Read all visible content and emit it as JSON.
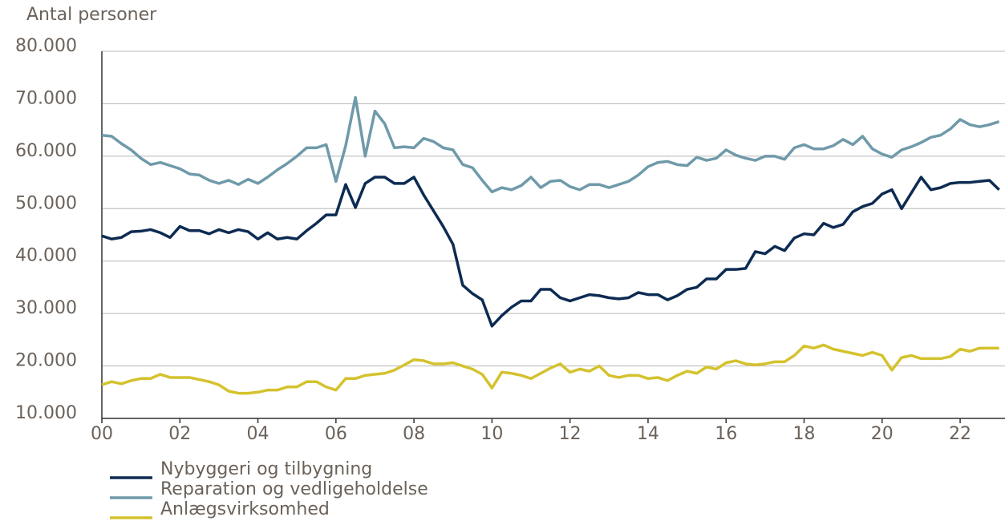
{
  "chart_data": {
    "type": "line",
    "y_label": "Antal personer",
    "x": [
      0,
      0.25,
      0.5,
      0.75,
      1,
      1.25,
      1.5,
      1.75,
      2,
      2.25,
      2.5,
      2.75,
      3,
      3.25,
      3.5,
      3.75,
      4,
      4.25,
      4.5,
      4.75,
      5,
      5.25,
      5.5,
      5.75,
      6,
      6.25,
      6.5,
      6.75,
      7,
      7.25,
      7.5,
      7.75,
      8,
      8.25,
      8.5,
      8.75,
      9,
      9.25,
      9.5,
      9.75,
      10,
      10.25,
      10.5,
      10.75,
      11,
      11.25,
      11.5,
      11.75,
      12,
      12.25,
      12.5,
      12.75,
      13,
      13.25,
      13.5,
      13.75,
      14,
      14.25,
      14.5,
      14.75,
      15,
      15.25,
      15.5,
      15.75,
      16,
      16.25,
      16.5,
      16.75,
      17,
      17.25,
      17.5,
      17.75,
      18,
      18.25,
      18.5,
      18.75,
      19,
      19.25,
      19.5,
      19.75,
      20,
      20.25,
      20.5,
      20.75,
      21,
      21.25,
      21.5,
      21.75,
      22,
      22.25,
      22.5,
      22.75,
      23
    ],
    "series": [
      {
        "name": "Nybyggeri og tilbygning",
        "color": "#0d2b52",
        "values": [
          44800,
          44200,
          44500,
          45600,
          45700,
          46000,
          45400,
          44500,
          46600,
          45800,
          45800,
          45200,
          46000,
          45400,
          46000,
          45600,
          44200,
          45400,
          44200,
          44500,
          44200,
          45800,
          47200,
          48800,
          48800,
          54600,
          50200,
          54800,
          56000,
          56000,
          54800,
          54800,
          56000,
          52600,
          49600,
          46600,
          43200,
          35400,
          33800,
          32600,
          27600,
          29600,
          31200,
          32400,
          32400,
          34600,
          34600,
          33000,
          32400,
          33000,
          33600,
          33400,
          33000,
          32800,
          33000,
          34000,
          33600,
          33600,
          32600,
          33400,
          34600,
          35000,
          36600,
          36600,
          38400,
          38400,
          38600,
          41800,
          41400,
          42800,
          42000,
          44400,
          45200,
          45000,
          47200,
          46400,
          47000,
          49400,
          50400,
          51000,
          52800,
          53600,
          50000,
          53000,
          56000,
          53600,
          54000,
          54800,
          55000,
          55000,
          55200,
          55400,
          53600
        ]
      },
      {
        "name": "Reparation og vedligeholdelse",
        "color": "#6f9aaa",
        "values": [
          64000,
          63800,
          62400,
          61200,
          59600,
          58400,
          58800,
          58200,
          57600,
          56600,
          56400,
          55400,
          54800,
          55400,
          54600,
          55600,
          54800,
          56000,
          57400,
          58600,
          60000,
          61600,
          61600,
          62200,
          55200,
          62000,
          71200,
          60000,
          68600,
          66200,
          61600,
          61800,
          61600,
          63400,
          62800,
          61600,
          61200,
          58400,
          57800,
          55400,
          53200,
          54000,
          53600,
          54400,
          56000,
          54000,
          55200,
          55400,
          54200,
          53600,
          54600,
          54600,
          54000,
          54600,
          55200,
          56400,
          58000,
          58800,
          59000,
          58400,
          58200,
          59800,
          59200,
          59600,
          61200,
          60200,
          59600,
          59200,
          60000,
          60000,
          59400,
          61600,
          62200,
          61400,
          61400,
          62000,
          63200,
          62200,
          63800,
          61400,
          60400,
          59800,
          61200,
          61800,
          62600,
          63600,
          64000,
          65200,
          67000,
          66000,
          65600,
          66000,
          66600
        ]
      },
      {
        "name": "Anlægsvirksomhed",
        "color": "#d4c22e",
        "values": [
          16400,
          17000,
          16600,
          17200,
          17600,
          17600,
          18400,
          17800,
          17800,
          17800,
          17400,
          17000,
          16400,
          15200,
          14800,
          14800,
          15000,
          15400,
          15400,
          16000,
          16000,
          17000,
          17000,
          16000,
          15400,
          17600,
          17600,
          18200,
          18400,
          18600,
          19200,
          20200,
          21200,
          21000,
          20400,
          20400,
          20600,
          20000,
          19400,
          18400,
          15800,
          18800,
          18600,
          18200,
          17600,
          18600,
          19600,
          20400,
          18800,
          19400,
          19000,
          20000,
          18200,
          17800,
          18200,
          18200,
          17600,
          17800,
          17200,
          18200,
          19000,
          18600,
          19800,
          19400,
          20600,
          21000,
          20400,
          20200,
          20400,
          20800,
          20800,
          22000,
          23800,
          23400,
          24000,
          23200,
          22800,
          22400,
          22000,
          22600,
          22000,
          19200,
          21600,
          22000,
          21400,
          21400,
          21400,
          21800,
          23200,
          22800,
          23400,
          23400,
          23400
        ]
      }
    ],
    "xlim": [
      0,
      23.15
    ],
    "xticks": [
      {
        "value": 0,
        "label": "00"
      },
      {
        "value": 2,
        "label": "02"
      },
      {
        "value": 4,
        "label": "04"
      },
      {
        "value": 6,
        "label": "06"
      },
      {
        "value": 8,
        "label": "08"
      },
      {
        "value": 10,
        "label": "10"
      },
      {
        "value": 12,
        "label": "12"
      },
      {
        "value": 14,
        "label": "14"
      },
      {
        "value": 16,
        "label": "16"
      },
      {
        "value": 18,
        "label": "18"
      },
      {
        "value": 20,
        "label": "20"
      },
      {
        "value": 22,
        "label": "22"
      }
    ],
    "ylim": [
      10000,
      80000
    ],
    "yticks": [
      {
        "value": 10000,
        "label": "10.000"
      },
      {
        "value": 20000,
        "label": "20.000"
      },
      {
        "value": 30000,
        "label": "30.000"
      },
      {
        "value": 40000,
        "label": "40.000"
      },
      {
        "value": 50000,
        "label": "50.000"
      },
      {
        "value": 60000,
        "label": "60.000"
      },
      {
        "value": 70000,
        "label": "70.000"
      },
      {
        "value": 80000,
        "label": "80.000"
      }
    ],
    "grid": true
  }
}
